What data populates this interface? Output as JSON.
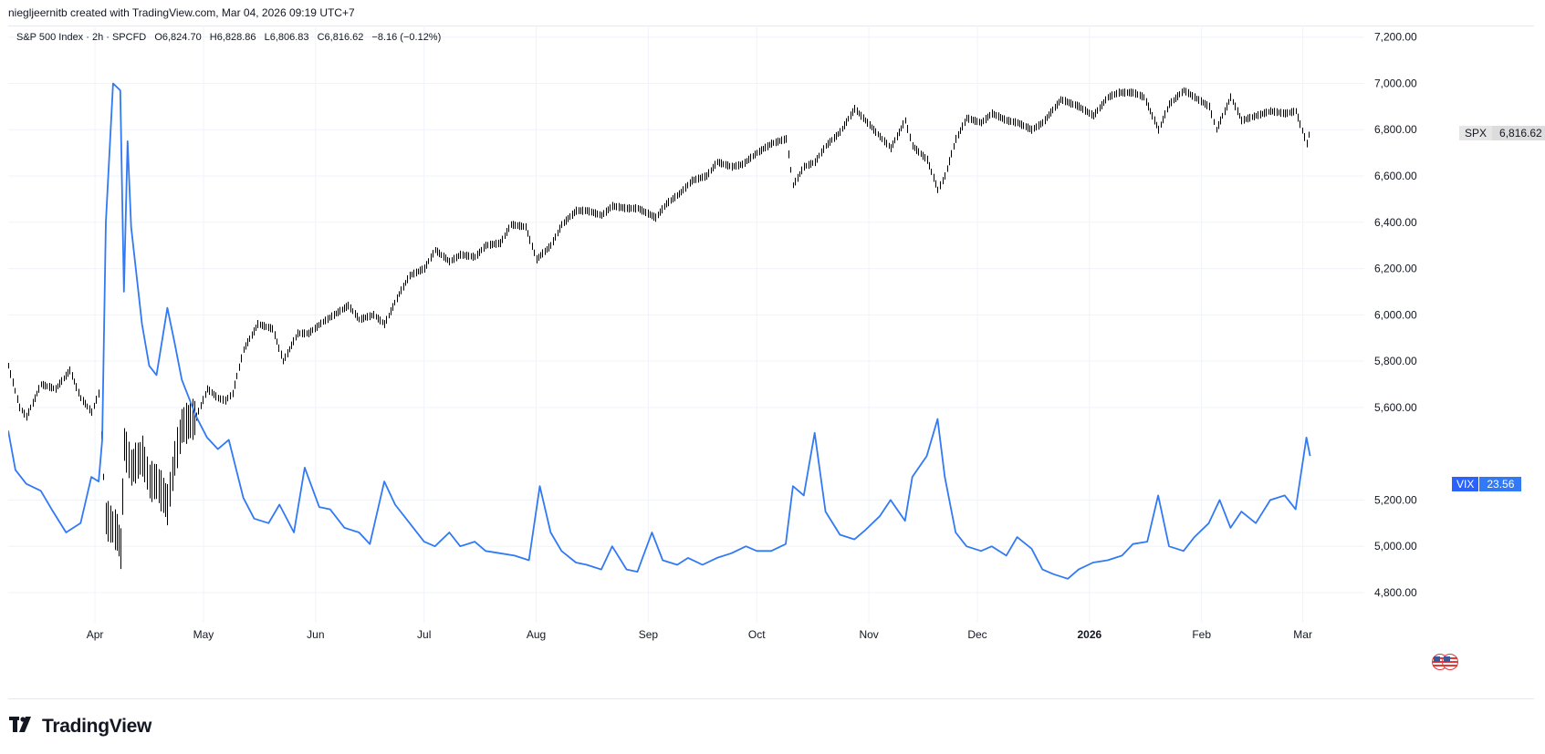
{
  "header": {
    "text": "niegljeernitb created with TradingView.com, Mar 04, 2026 09:19 UTC+7"
  },
  "legend": {
    "symbol": "S&P 500 Index · 2h · SPCFD",
    "open": "O6,824.70",
    "high": "H6,828.86",
    "low": "L6,806.83",
    "close": "C6,816.62",
    "change": "−8.16 (−0.12%)"
  },
  "brand": {
    "name": "TradingView"
  },
  "tags": {
    "spx": {
      "symbol": "SPX",
      "value": "6,816.62"
    },
    "vix": {
      "symbol": "VIX",
      "value": "23.56"
    }
  },
  "colors": {
    "spx": "#000000",
    "vix": "#3179f5",
    "grid": "#f0f3fa",
    "axis_text": "#131722"
  },
  "icons": {
    "flag": "us-flag-icon",
    "logo": "tradingview-logo-icon"
  },
  "chart_data": {
    "type": "line",
    "y_axis": {
      "range": [
        4670,
        7250
      ],
      "ticks": [
        7200,
        7000,
        6800,
        6600,
        6400,
        6200,
        6000,
        5800,
        5600,
        5200,
        5000,
        4800
      ],
      "tick_labels": [
        "7,200.00",
        "7,000.00",
        "6,800.00",
        "6,600.00",
        "6,400.00",
        "6,200.00",
        "6,000.00",
        "5,800.00",
        "5,600.00",
        "5,200.00",
        "5,000.00",
        "4,800.00"
      ]
    },
    "x_axis": {
      "range": [
        "2025-03-08",
        "2026-03-18"
      ],
      "labels": [
        {
          "date": "2025-04-01",
          "label": "Apr",
          "bold": false
        },
        {
          "date": "2025-05-01",
          "label": "May",
          "bold": false
        },
        {
          "date": "2025-06-01",
          "label": "Jun",
          "bold": false
        },
        {
          "date": "2025-07-01",
          "label": "Jul",
          "bold": false
        },
        {
          "date": "2025-08-01",
          "label": "Aug",
          "bold": false
        },
        {
          "date": "2025-09-01",
          "label": "Sep",
          "bold": false
        },
        {
          "date": "2025-10-01",
          "label": "Oct",
          "bold": false
        },
        {
          "date": "2025-11-01",
          "label": "Nov",
          "bold": false
        },
        {
          "date": "2025-12-01",
          "label": "Dec",
          "bold": false
        },
        {
          "date": "2026-01-01",
          "label": "2026",
          "bold": true
        },
        {
          "date": "2026-02-01",
          "label": "Feb",
          "bold": false
        },
        {
          "date": "2026-03-01",
          "label": "Mar",
          "bold": false
        }
      ]
    },
    "series": [
      {
        "name": "SPX",
        "style": "bars",
        "points": [
          [
            "2025-03-08",
            5780
          ],
          [
            "2025-03-11",
            5600
          ],
          [
            "2025-03-13",
            5560
          ],
          [
            "2025-03-17",
            5700
          ],
          [
            "2025-03-21",
            5680
          ],
          [
            "2025-03-25",
            5760
          ],
          [
            "2025-03-28",
            5640
          ],
          [
            "2025-03-31",
            5580
          ],
          [
            "2025-04-02",
            5660
          ],
          [
            "2025-04-04",
            5120
          ],
          [
            "2025-04-07",
            5060
          ],
          [
            "2025-04-08",
            4990
          ],
          [
            "2025-04-09",
            5440
          ],
          [
            "2025-04-11",
            5340
          ],
          [
            "2025-04-14",
            5390
          ],
          [
            "2025-04-16",
            5280
          ],
          [
            "2025-04-18",
            5280
          ],
          [
            "2025-04-21",
            5180
          ],
          [
            "2025-04-23",
            5380
          ],
          [
            "2025-04-25",
            5520
          ],
          [
            "2025-04-29",
            5560
          ],
          [
            "2025-05-02",
            5680
          ],
          [
            "2025-05-05",
            5640
          ],
          [
            "2025-05-07",
            5630
          ],
          [
            "2025-05-09",
            5660
          ],
          [
            "2025-05-12",
            5850
          ],
          [
            "2025-05-16",
            5960
          ],
          [
            "2025-05-20",
            5940
          ],
          [
            "2025-05-23",
            5800
          ],
          [
            "2025-05-27",
            5920
          ],
          [
            "2025-05-30",
            5920
          ],
          [
            "2025-06-03",
            5970
          ],
          [
            "2025-06-06",
            6000
          ],
          [
            "2025-06-10",
            6040
          ],
          [
            "2025-06-13",
            5980
          ],
          [
            "2025-06-17",
            6000
          ],
          [
            "2025-06-20",
            5960
          ],
          [
            "2025-06-24",
            6090
          ],
          [
            "2025-06-27",
            6170
          ],
          [
            "2025-07-01",
            6200
          ],
          [
            "2025-07-04",
            6280
          ],
          [
            "2025-07-08",
            6230
          ],
          [
            "2025-07-11",
            6260
          ],
          [
            "2025-07-15",
            6250
          ],
          [
            "2025-07-18",
            6300
          ],
          [
            "2025-07-22",
            6310
          ],
          [
            "2025-07-25",
            6390
          ],
          [
            "2025-07-29",
            6380
          ],
          [
            "2025-08-01",
            6240
          ],
          [
            "2025-08-05",
            6300
          ],
          [
            "2025-08-08",
            6390
          ],
          [
            "2025-08-12",
            6450
          ],
          [
            "2025-08-15",
            6450
          ],
          [
            "2025-08-19",
            6430
          ],
          [
            "2025-08-22",
            6470
          ],
          [
            "2025-08-26",
            6460
          ],
          [
            "2025-08-29",
            6460
          ],
          [
            "2025-09-03",
            6420
          ],
          [
            "2025-09-06",
            6480
          ],
          [
            "2025-09-10",
            6530
          ],
          [
            "2025-09-13",
            6580
          ],
          [
            "2025-09-17",
            6600
          ],
          [
            "2025-09-20",
            6660
          ],
          [
            "2025-09-24",
            6640
          ],
          [
            "2025-09-27",
            6650
          ],
          [
            "2025-10-01",
            6700
          ],
          [
            "2025-10-05",
            6740
          ],
          [
            "2025-10-09",
            6760
          ],
          [
            "2025-10-11",
            6560
          ],
          [
            "2025-10-14",
            6640
          ],
          [
            "2025-10-17",
            6660
          ],
          [
            "2025-10-20",
            6730
          ],
          [
            "2025-10-24",
            6790
          ],
          [
            "2025-10-28",
            6890
          ],
          [
            "2025-10-31",
            6840
          ],
          [
            "2025-11-04",
            6770
          ],
          [
            "2025-11-07",
            6720
          ],
          [
            "2025-11-11",
            6840
          ],
          [
            "2025-11-13",
            6730
          ],
          [
            "2025-11-17",
            6670
          ],
          [
            "2025-11-20",
            6540
          ],
          [
            "2025-11-22",
            6600
          ],
          [
            "2025-11-25",
            6760
          ],
          [
            "2025-11-28",
            6850
          ],
          [
            "2025-12-02",
            6830
          ],
          [
            "2025-12-05",
            6870
          ],
          [
            "2025-12-09",
            6840
          ],
          [
            "2025-12-12",
            6830
          ],
          [
            "2025-12-16",
            6800
          ],
          [
            "2025-12-19",
            6830
          ],
          [
            "2025-12-24",
            6930
          ],
          [
            "2025-12-29",
            6900
          ],
          [
            "2026-01-02",
            6860
          ],
          [
            "2026-01-06",
            6940
          ],
          [
            "2026-01-09",
            6960
          ],
          [
            "2026-01-13",
            6960
          ],
          [
            "2026-01-16",
            6940
          ],
          [
            "2026-01-20",
            6800
          ],
          [
            "2026-01-23",
            6910
          ],
          [
            "2026-01-27",
            6970
          ],
          [
            "2026-01-30",
            6940
          ],
          [
            "2026-02-03",
            6900
          ],
          [
            "2026-02-05",
            6800
          ],
          [
            "2026-02-09",
            6940
          ],
          [
            "2026-02-12",
            6840
          ],
          [
            "2026-02-16",
            6860
          ],
          [
            "2026-02-20",
            6880
          ],
          [
            "2026-02-24",
            6870
          ],
          [
            "2026-02-27",
            6880
          ],
          [
            "2026-03-02",
            6740
          ],
          [
            "2026-03-03",
            6816.62
          ]
        ]
      },
      {
        "name": "VIX",
        "style": "line",
        "points": [
          [
            "2025-03-08",
            5500
          ],
          [
            "2025-03-10",
            5330
          ],
          [
            "2025-03-13",
            5270
          ],
          [
            "2025-03-17",
            5240
          ],
          [
            "2025-03-20",
            5160
          ],
          [
            "2025-03-24",
            5060
          ],
          [
            "2025-03-28",
            5100
          ],
          [
            "2025-03-31",
            5300
          ],
          [
            "2025-04-02",
            5280
          ],
          [
            "2025-04-03",
            5460
          ],
          [
            "2025-04-04",
            6400
          ],
          [
            "2025-04-06",
            7000
          ],
          [
            "2025-04-08",
            6970
          ],
          [
            "2025-04-09",
            6100
          ],
          [
            "2025-04-10",
            6750
          ],
          [
            "2025-04-11",
            6380
          ],
          [
            "2025-04-14",
            5960
          ],
          [
            "2025-04-16",
            5780
          ],
          [
            "2025-04-18",
            5740
          ],
          [
            "2025-04-21",
            6030
          ],
          [
            "2025-04-23",
            5880
          ],
          [
            "2025-04-25",
            5720
          ],
          [
            "2025-04-29",
            5560
          ],
          [
            "2025-05-02",
            5470
          ],
          [
            "2025-05-05",
            5420
          ],
          [
            "2025-05-08",
            5460
          ],
          [
            "2025-05-12",
            5210
          ],
          [
            "2025-05-15",
            5120
          ],
          [
            "2025-05-19",
            5100
          ],
          [
            "2025-05-22",
            5180
          ],
          [
            "2025-05-26",
            5060
          ],
          [
            "2025-05-29",
            5340
          ],
          [
            "2025-06-02",
            5170
          ],
          [
            "2025-06-05",
            5160
          ],
          [
            "2025-06-09",
            5080
          ],
          [
            "2025-06-13",
            5060
          ],
          [
            "2025-06-16",
            5010
          ],
          [
            "2025-06-20",
            5280
          ],
          [
            "2025-06-23",
            5180
          ],
          [
            "2025-06-27",
            5100
          ],
          [
            "2025-07-01",
            5020
          ],
          [
            "2025-07-04",
            5000
          ],
          [
            "2025-07-08",
            5060
          ],
          [
            "2025-07-11",
            5000
          ],
          [
            "2025-07-15",
            5020
          ],
          [
            "2025-07-18",
            4980
          ],
          [
            "2025-07-22",
            4970
          ],
          [
            "2025-07-26",
            4960
          ],
          [
            "2025-07-30",
            4940
          ],
          [
            "2025-08-02",
            5260
          ],
          [
            "2025-08-05",
            5060
          ],
          [
            "2025-08-08",
            4980
          ],
          [
            "2025-08-12",
            4930
          ],
          [
            "2025-08-15",
            4920
          ],
          [
            "2025-08-19",
            4900
          ],
          [
            "2025-08-22",
            5000
          ],
          [
            "2025-08-26",
            4900
          ],
          [
            "2025-08-29",
            4890
          ],
          [
            "2025-09-02",
            5060
          ],
          [
            "2025-09-05",
            4940
          ],
          [
            "2025-09-09",
            4920
          ],
          [
            "2025-09-12",
            4950
          ],
          [
            "2025-09-16",
            4920
          ],
          [
            "2025-09-20",
            4950
          ],
          [
            "2025-09-24",
            4970
          ],
          [
            "2025-09-28",
            5000
          ],
          [
            "2025-10-01",
            4980
          ],
          [
            "2025-10-05",
            4980
          ],
          [
            "2025-10-09",
            5010
          ],
          [
            "2025-10-11",
            5260
          ],
          [
            "2025-10-14",
            5220
          ],
          [
            "2025-10-17",
            5490
          ],
          [
            "2025-10-20",
            5150
          ],
          [
            "2025-10-24",
            5050
          ],
          [
            "2025-10-28",
            5030
          ],
          [
            "2025-10-31",
            5070
          ],
          [
            "2025-11-04",
            5130
          ],
          [
            "2025-11-07",
            5200
          ],
          [
            "2025-11-11",
            5110
          ],
          [
            "2025-11-13",
            5300
          ],
          [
            "2025-11-17",
            5390
          ],
          [
            "2025-11-20",
            5550
          ],
          [
            "2025-11-22",
            5300
          ],
          [
            "2025-11-25",
            5060
          ],
          [
            "2025-11-28",
            5000
          ],
          [
            "2025-12-02",
            4980
          ],
          [
            "2025-12-05",
            5000
          ],
          [
            "2025-12-09",
            4960
          ],
          [
            "2025-12-12",
            5040
          ],
          [
            "2025-12-16",
            4990
          ],
          [
            "2025-12-19",
            4900
          ],
          [
            "2025-12-22",
            4880
          ],
          [
            "2025-12-26",
            4860
          ],
          [
            "2025-12-29",
            4900
          ],
          [
            "2026-01-02",
            4930
          ],
          [
            "2026-01-06",
            4940
          ],
          [
            "2026-01-10",
            4960
          ],
          [
            "2026-01-13",
            5010
          ],
          [
            "2026-01-17",
            5020
          ],
          [
            "2026-01-20",
            5220
          ],
          [
            "2026-01-23",
            5000
          ],
          [
            "2026-01-27",
            4980
          ],
          [
            "2026-01-30",
            5040
          ],
          [
            "2026-02-03",
            5100
          ],
          [
            "2026-02-06",
            5200
          ],
          [
            "2026-02-09",
            5080
          ],
          [
            "2026-02-12",
            5150
          ],
          [
            "2026-02-16",
            5100
          ],
          [
            "2026-02-20",
            5200
          ],
          [
            "2026-02-24",
            5220
          ],
          [
            "2026-02-27",
            5160
          ],
          [
            "2026-03-02",
            5470
          ],
          [
            "2026-03-03",
            5390
          ]
        ]
      }
    ]
  }
}
